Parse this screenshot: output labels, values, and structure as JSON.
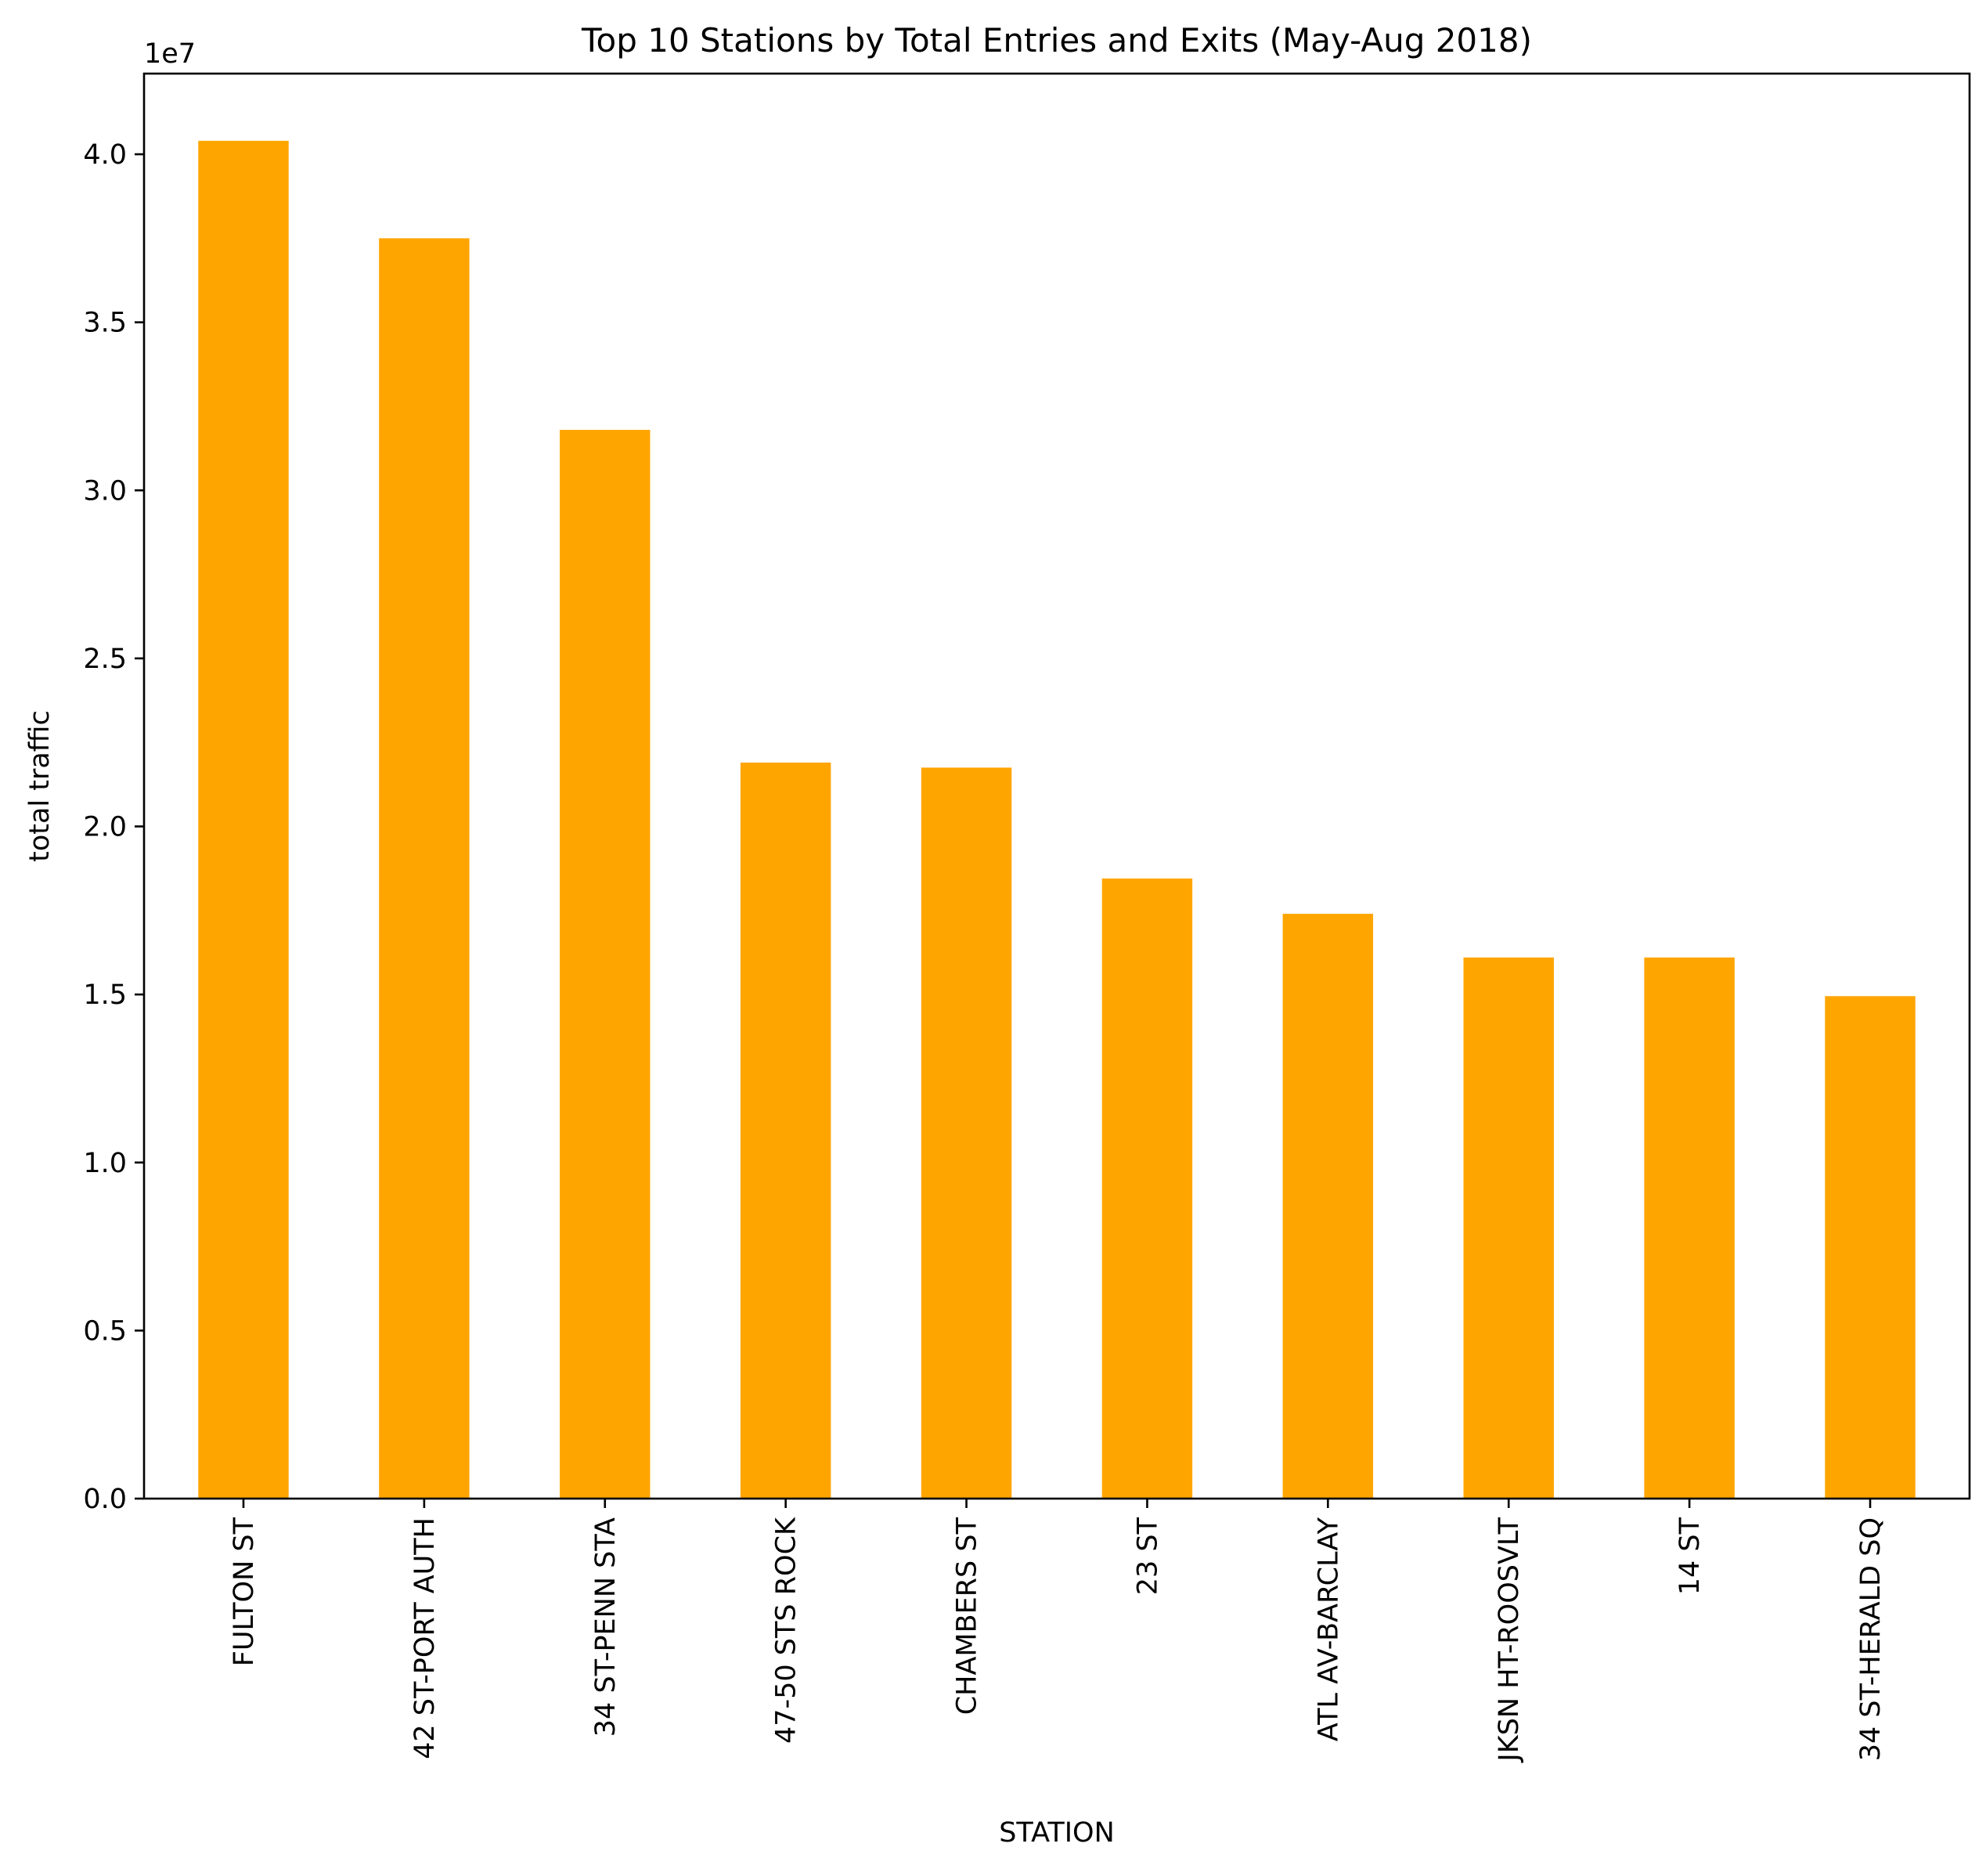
{
  "chart_data": {
    "type": "bar",
    "title": "Top 10 Stations by Total Entries and Exits (May-Aug 2018)",
    "xlabel": "STATION",
    "ylabel": "total traffic",
    "y_offset_label": "1e7",
    "categories": [
      "FULTON ST",
      "42 ST-PORT AUTH",
      "34 ST-PENN STA",
      "47-50 STS ROCK",
      "CHAMBERS ST",
      "23 ST",
      "ATL AV-BARCLAY",
      "JKSN HT-ROOSVLT",
      "14 ST",
      "34 ST-HERALD SQ"
    ],
    "values": [
      40400000,
      37500000,
      31800000,
      21900000,
      21750000,
      18450000,
      17400000,
      16100000,
      16100000,
      14950000
    ],
    "ylim": [
      0,
      42400000
    ],
    "yticks": [
      0,
      5000000,
      10000000,
      15000000,
      20000000,
      25000000,
      30000000,
      35000000,
      40000000
    ],
    "ytick_labels": [
      "0.0",
      "0.5",
      "1.0",
      "1.5",
      "2.0",
      "2.5",
      "3.0",
      "3.5",
      "4.0"
    ],
    "bar_color": "#ffa500",
    "grid": false,
    "legend": "none"
  }
}
